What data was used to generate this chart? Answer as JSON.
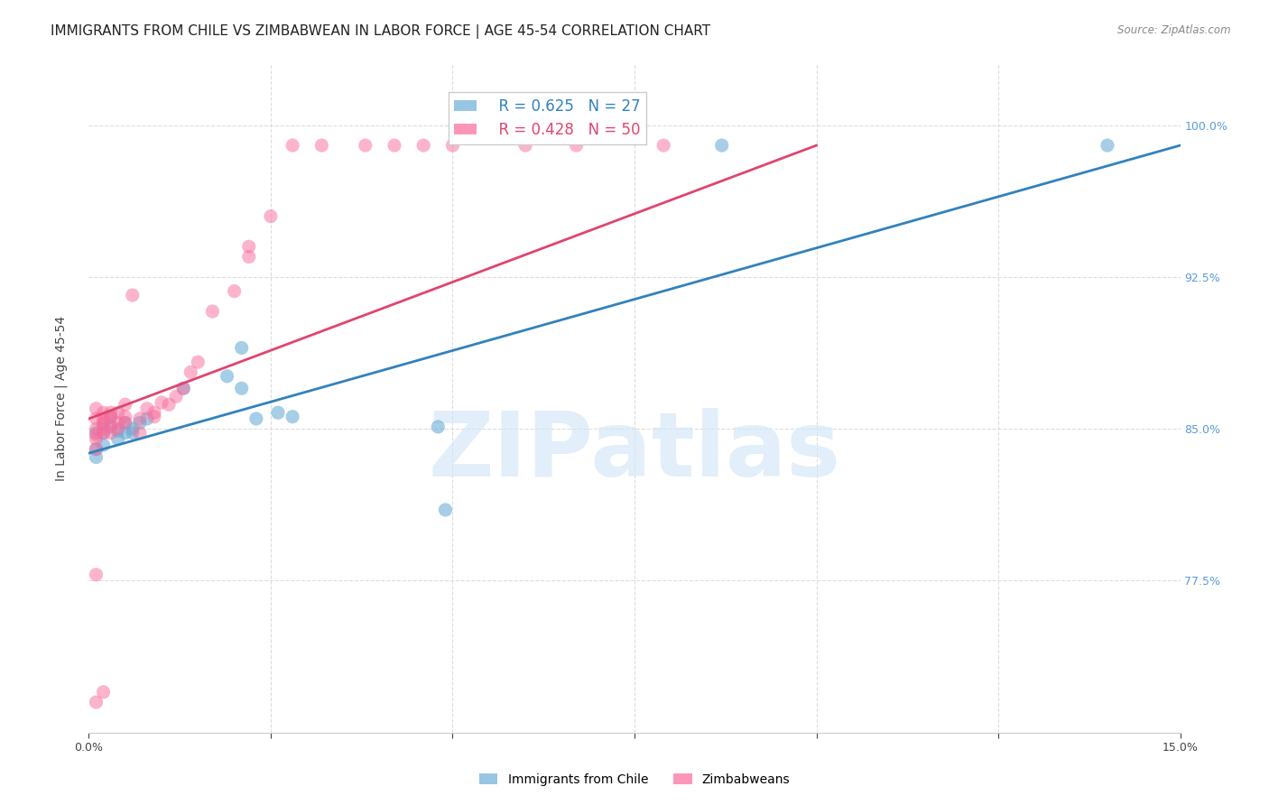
{
  "title": "IMMIGRANTS FROM CHILE VS ZIMBABWEAN IN LABOR FORCE | AGE 45-54 CORRELATION CHART",
  "source": "Source: ZipAtlas.com",
  "xlabel": "",
  "ylabel": "In Labor Force | Age 45-54",
  "xlim": [
    0.0,
    0.15
  ],
  "ylim": [
    0.7,
    1.03
  ],
  "xticks": [
    0.0,
    0.025,
    0.05,
    0.075,
    0.1,
    0.125,
    0.15
  ],
  "xticklabels": [
    "0.0%",
    "",
    "",
    "",
    "",
    "",
    "15.0%"
  ],
  "yticks": [
    0.775,
    0.85,
    0.925,
    1.0
  ],
  "yticklabels": [
    "77.5%",
    "85.0%",
    "92.5%",
    "100.0%"
  ],
  "legend_blue_r": "R = 0.625",
  "legend_blue_n": "N = 27",
  "legend_pink_r": "R = 0.428",
  "legend_pink_n": "N = 50",
  "blue_color": "#6baed6",
  "pink_color": "#fb6a9a",
  "blue_line_color": "#3182bd",
  "pink_line_color": "#e0456e",
  "watermark": "ZIPatlas",
  "blue_points_x": [
    0.001,
    0.001,
    0.001,
    0.002,
    0.002,
    0.002,
    0.003,
    0.003,
    0.004,
    0.004,
    0.005,
    0.005,
    0.006,
    0.006,
    0.007,
    0.008,
    0.013,
    0.019,
    0.021,
    0.021,
    0.023,
    0.026,
    0.028,
    0.048,
    0.049,
    0.087,
    0.14
  ],
  "blue_points_y": [
    0.848,
    0.84,
    0.836,
    0.852,
    0.848,
    0.842,
    0.856,
    0.851,
    0.849,
    0.845,
    0.853,
    0.848,
    0.85,
    0.848,
    0.853,
    0.855,
    0.87,
    0.876,
    0.89,
    0.87,
    0.855,
    0.858,
    0.856,
    0.851,
    0.81,
    0.99,
    0.99
  ],
  "pink_points_x": [
    0.001,
    0.001,
    0.001,
    0.001,
    0.001,
    0.001,
    0.001,
    0.002,
    0.002,
    0.002,
    0.002,
    0.002,
    0.003,
    0.003,
    0.003,
    0.003,
    0.004,
    0.004,
    0.004,
    0.005,
    0.005,
    0.005,
    0.006,
    0.007,
    0.007,
    0.008,
    0.009,
    0.009,
    0.01,
    0.011,
    0.012,
    0.013,
    0.014,
    0.015,
    0.017,
    0.02,
    0.022,
    0.022,
    0.025,
    0.028,
    0.032,
    0.038,
    0.042,
    0.046,
    0.05,
    0.06,
    0.067,
    0.079,
    0.001,
    0.002
  ],
  "pink_points_y": [
    0.778,
    0.84,
    0.845,
    0.847,
    0.85,
    0.855,
    0.86,
    0.848,
    0.85,
    0.853,
    0.855,
    0.858,
    0.848,
    0.852,
    0.856,
    0.858,
    0.85,
    0.853,
    0.858,
    0.853,
    0.856,
    0.862,
    0.916,
    0.848,
    0.855,
    0.86,
    0.856,
    0.858,
    0.863,
    0.862,
    0.866,
    0.87,
    0.878,
    0.883,
    0.908,
    0.918,
    0.935,
    0.94,
    0.955,
    0.99,
    0.99,
    0.99,
    0.99,
    0.99,
    0.99,
    0.99,
    0.99,
    0.99,
    0.715,
    0.72
  ],
  "blue_line_x": [
    0.0,
    0.15
  ],
  "blue_line_y": [
    0.838,
    0.99
  ],
  "pink_line_x": [
    0.0,
    0.1
  ],
  "pink_line_y": [
    0.855,
    0.99
  ],
  "background_color": "#ffffff",
  "grid_color": "#dddddd",
  "title_fontsize": 11,
  "axis_fontsize": 10,
  "tick_fontsize": 9,
  "legend_fontsize": 12
}
